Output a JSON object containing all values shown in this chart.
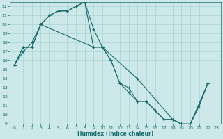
{
  "xlabel": "Humidex (Indice chaleur)",
  "bg_color": "#cce8e8",
  "line_color": "#1a6b6b",
  "grid_color": "#aad4d4",
  "xlim": [
    -0.5,
    23.5
  ],
  "ylim": [
    9,
    22.5
  ],
  "xticks": [
    0,
    1,
    2,
    3,
    4,
    5,
    6,
    7,
    8,
    9,
    10,
    11,
    12,
    13,
    14,
    15,
    16,
    17,
    18,
    19,
    20,
    21,
    22,
    23
  ],
  "yticks": [
    9,
    10,
    11,
    12,
    13,
    14,
    15,
    16,
    17,
    18,
    19,
    20,
    21,
    22
  ],
  "line1_x": [
    0,
    1,
    2,
    3,
    4,
    5,
    6,
    7,
    8,
    9,
    10,
    11,
    12,
    13,
    14,
    15,
    16,
    17,
    18,
    19,
    20,
    21,
    22
  ],
  "line1_y": [
    15.5,
    17.0,
    18.0,
    20.0,
    21.0,
    21.5,
    21.5,
    22.0,
    22.5,
    19.5,
    17.5,
    16.0,
    13.5,
    13.0,
    11.5,
    11.5,
    10.5,
    9.5,
    9.5,
    9.0,
    9.0,
    11.0,
    13.5
  ],
  "line2_x": [
    0,
    1,
    2,
    3,
    4,
    5,
    6,
    7,
    8,
    9,
    10,
    11,
    12,
    13,
    14,
    15,
    16,
    17,
    18,
    19,
    20,
    21,
    22
  ],
  "line2_y": [
    15.5,
    17.5,
    17.5,
    20.0,
    21.0,
    21.5,
    21.5,
    22.0,
    22.5,
    17.5,
    17.5,
    16.0,
    13.5,
    12.5,
    11.5,
    11.5,
    10.5,
    9.5,
    9.5,
    9.0,
    9.0,
    11.0,
    13.5
  ],
  "line3_x": [
    0,
    1,
    2,
    3,
    9,
    10,
    14,
    18,
    19,
    20,
    22
  ],
  "line3_y": [
    15.5,
    17.5,
    17.5,
    20.0,
    17.5,
    17.5,
    14.0,
    9.5,
    9.0,
    9.0,
    13.5
  ]
}
